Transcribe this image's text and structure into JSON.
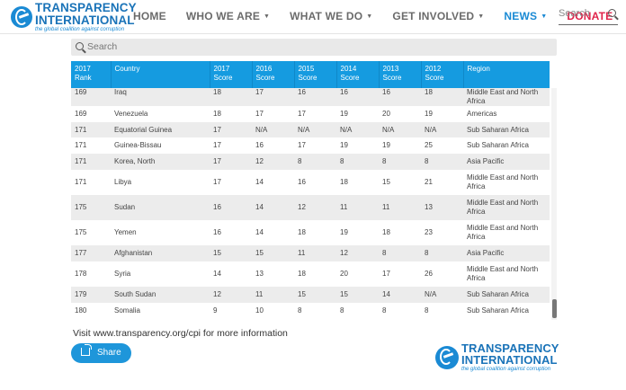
{
  "header": {
    "logo_line1": "TRANSPARENCY",
    "logo_line2": "INTERNATIONAL",
    "logo_tagline": "the global coalition against corruption",
    "nav": [
      {
        "label": "HOME",
        "caret": false
      },
      {
        "label": "WHO WE ARE",
        "caret": true
      },
      {
        "label": "WHAT WE DO",
        "caret": true
      },
      {
        "label": "GET INVOLVED",
        "caret": true
      },
      {
        "label": "NEWS",
        "caret": true
      },
      {
        "label": "DONATE",
        "caret": false
      }
    ],
    "search_placeholder": "Search"
  },
  "table_search": {
    "placeholder": "Search"
  },
  "table": {
    "columns": [
      {
        "line1": "2017",
        "line2": "Rank"
      },
      {
        "line1": "Country",
        "line2": ""
      },
      {
        "line1": "2017",
        "line2": "Score"
      },
      {
        "line1": "2016",
        "line2": "Score"
      },
      {
        "line1": "2015",
        "line2": "Score"
      },
      {
        "line1": "2014",
        "line2": "Score"
      },
      {
        "line1": "2013",
        "line2": "Score"
      },
      {
        "line1": "2012",
        "line2": "Score"
      },
      {
        "line1": "Region",
        "line2": ""
      }
    ],
    "rows": [
      [
        "169",
        "Iraq",
        "18",
        "17",
        "16",
        "16",
        "16",
        "18",
        "Middle East and North Africa"
      ],
      [
        "169",
        "Venezuela",
        "18",
        "17",
        "17",
        "19",
        "20",
        "19",
        "Americas"
      ],
      [
        "171",
        "Equatorial Guinea",
        "17",
        "N/A",
        "N/A",
        "N/A",
        "N/A",
        "N/A",
        "Sub Saharan Africa"
      ],
      [
        "171",
        "Guinea-Bissau",
        "17",
        "16",
        "17",
        "19",
        "19",
        "25",
        "Sub Saharan Africa"
      ],
      [
        "171",
        "Korea, North",
        "17",
        "12",
        "8",
        "8",
        "8",
        "8",
        "Asia Pacific"
      ],
      [
        "171",
        "Libya",
        "17",
        "14",
        "16",
        "18",
        "15",
        "21",
        "Middle East and North Africa"
      ],
      [
        "175",
        "Sudan",
        "16",
        "14",
        "12",
        "11",
        "11",
        "13",
        "Middle East and North Africa"
      ],
      [
        "175",
        "Yemen",
        "16",
        "14",
        "18",
        "19",
        "18",
        "23",
        "Middle East and North Africa"
      ],
      [
        "177",
        "Afghanistan",
        "15",
        "15",
        "11",
        "12",
        "8",
        "8",
        "Asia Pacific"
      ],
      [
        "178",
        "Syria",
        "14",
        "13",
        "18",
        "20",
        "17",
        "26",
        "Middle East and North Africa"
      ],
      [
        "179",
        "South Sudan",
        "12",
        "11",
        "15",
        "15",
        "14",
        "N/A",
        "Sub Saharan Africa"
      ],
      [
        "180",
        "Somalia",
        "9",
        "10",
        "8",
        "8",
        "8",
        "8",
        "Sub Saharan Africa"
      ]
    ]
  },
  "footer": {
    "visit_text": "Visit www.transparency.org/cpi for more information",
    "share_label": "Share"
  },
  "colors": {
    "header_blue": "#159be0",
    "brand_blue": "#1a73b8",
    "donate_red": "#e0234a",
    "row_stripe": "#ececec"
  }
}
